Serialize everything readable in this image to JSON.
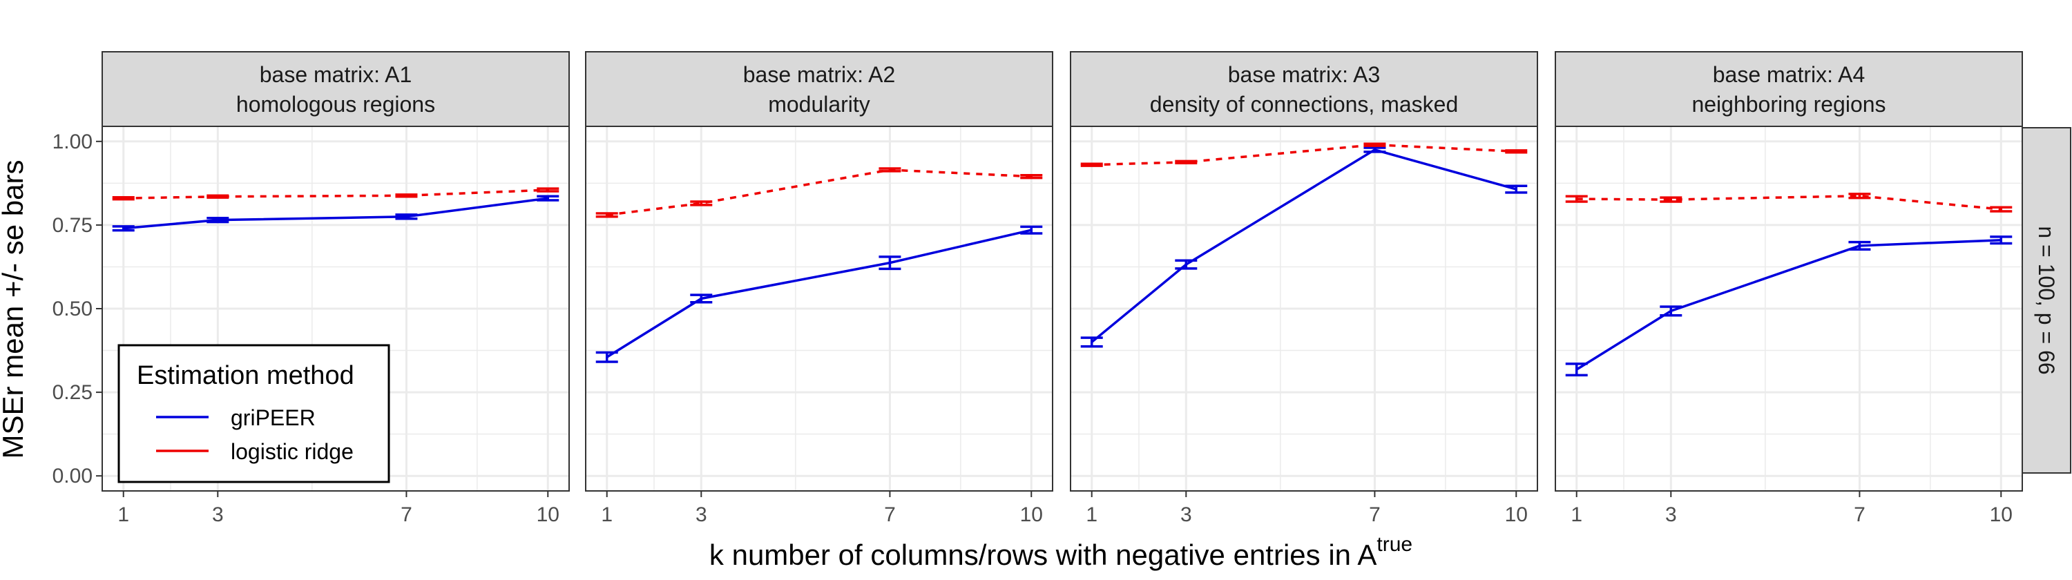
{
  "figure": {
    "ylabel": "MSEr mean +/- se bars",
    "xlabel_main": "k number of columns/rows with negative entries in A",
    "xlabel_sup": "true",
    "row_strip": "n = 100, p = 66",
    "legend": {
      "title": "Estimation method",
      "position": "bottom-left inside first panel",
      "entries": [
        {
          "label": "griPEER",
          "color": "#0000dd",
          "linetype": "solid"
        },
        {
          "label": "logistic ridge",
          "color": "#ee0000",
          "linetype": "dashed"
        }
      ]
    },
    "colors": {
      "gripeer": "#0000dd",
      "ridge": "#ee0000",
      "strip_bg": "#d9d9d9",
      "grid": "#ebebeb"
    }
  },
  "chart_data": [
    {
      "type": "line",
      "panel": "A1",
      "strip_line1": "base matrix: A1",
      "strip_line2": "homologous regions",
      "x": [
        1,
        3,
        7,
        10
      ],
      "xticks": [
        "1",
        "3",
        "7",
        "10"
      ],
      "yticks": [
        "0.00",
        "0.25",
        "0.50",
        "0.75",
        "1.00"
      ],
      "ylim": [
        -0.045,
        1.045
      ],
      "grid": true,
      "series": [
        {
          "name": "griPEER",
          "values": [
            0.74,
            0.765,
            0.775,
            0.83
          ],
          "se": [
            0.006,
            0.006,
            0.006,
            0.006
          ]
        },
        {
          "name": "logistic ridge",
          "values": [
            0.83,
            0.835,
            0.838,
            0.855
          ],
          "se": [
            0.003,
            0.003,
            0.003,
            0.004
          ]
        }
      ]
    },
    {
      "type": "line",
      "panel": "A2",
      "strip_line1": "base matrix: A2",
      "strip_line2": "modularity",
      "x": [
        1,
        3,
        7,
        10
      ],
      "xticks": [
        "1",
        "3",
        "7",
        "10"
      ],
      "yticks": [
        "0.00",
        "0.25",
        "0.50",
        "0.75",
        "1.00"
      ],
      "ylim": [
        -0.045,
        1.045
      ],
      "grid": true,
      "series": [
        {
          "name": "griPEER",
          "values": [
            0.355,
            0.53,
            0.637,
            0.735
          ],
          "se": [
            0.014,
            0.011,
            0.018,
            0.01
          ]
        },
        {
          "name": "logistic ridge",
          "values": [
            0.78,
            0.815,
            0.915,
            0.895
          ],
          "se": [
            0.005,
            0.005,
            0.004,
            0.004
          ]
        }
      ]
    },
    {
      "type": "line",
      "panel": "A3",
      "strip_line1": "base matrix: A3",
      "strip_line2": "density of connections, masked",
      "x": [
        1,
        3,
        7,
        10
      ],
      "xticks": [
        "1",
        "3",
        "7",
        "10"
      ],
      "yticks": [
        "0.00",
        "0.25",
        "0.50",
        "0.75",
        "1.00"
      ],
      "ylim": [
        -0.045,
        1.045
      ],
      "grid": true,
      "series": [
        {
          "name": "griPEER",
          "values": [
            0.4,
            0.632,
            0.975,
            0.857
          ],
          "se": [
            0.013,
            0.012,
            0.006,
            0.01
          ]
        },
        {
          "name": "logistic ridge",
          "values": [
            0.93,
            0.938,
            0.99,
            0.97
          ],
          "se": [
            0.003,
            0.003,
            0.003,
            0.003
          ]
        }
      ]
    },
    {
      "type": "line",
      "panel": "A4",
      "strip_line1": "base matrix: A4",
      "strip_line2": "neighboring regions",
      "x": [
        1,
        3,
        7,
        10
      ],
      "xticks": [
        "1",
        "3",
        "7",
        "10"
      ],
      "yticks": [
        "0.00",
        "0.25",
        "0.50",
        "0.75",
        "1.00"
      ],
      "ylim": [
        -0.045,
        1.045
      ],
      "grid": true,
      "series": [
        {
          "name": "griPEER",
          "values": [
            0.318,
            0.493,
            0.688,
            0.705
          ],
          "se": [
            0.017,
            0.013,
            0.011,
            0.01
          ]
        },
        {
          "name": "logistic ridge",
          "values": [
            0.828,
            0.826,
            0.837,
            0.797
          ],
          "se": [
            0.008,
            0.006,
            0.006,
            0.006
          ]
        }
      ]
    }
  ]
}
